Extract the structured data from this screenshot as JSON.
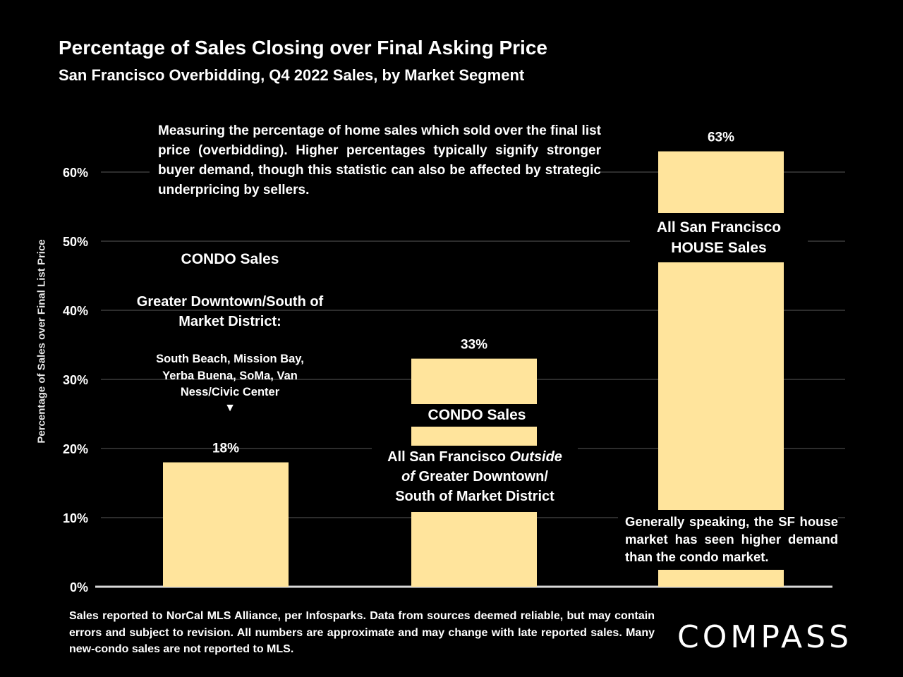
{
  "chart_data": {
    "type": "bar",
    "title": "Percentage of Sales Closing over Final Asking Price",
    "subtitle": "San Francisco Overbidding, Q4 2022 Sales, by Market Segment",
    "ylabel": "Percentage of Sales over Final List Price",
    "xlabel": "",
    "ylim": [
      0,
      70
    ],
    "yticks": [
      0,
      10,
      20,
      30,
      40,
      50,
      60
    ],
    "ytick_labels": [
      "0%",
      "10%",
      "20%",
      "30%",
      "40%",
      "50%",
      "60%"
    ],
    "grid": true,
    "categories": [
      "CONDO Sales - Greater Downtown/South of Market District",
      "CONDO Sales - All San Francisco Outside of Greater Downtown/South of Market District",
      "All San Francisco HOUSE Sales"
    ],
    "values": [
      18,
      33,
      63
    ],
    "value_labels": [
      "18%",
      "33%",
      "63%"
    ],
    "bar_color": "#FFE49C"
  },
  "annotations": {
    "description": "Measuring the percentage of home sales which sold over the final list price (overbidding). Higher percentages typically signify stronger buyer demand, though this statistic can also be affected by strategic underpricing by sellers.",
    "condo1_title": "CONDO Sales",
    "condo1_district": "Greater Downtown/South of Market District:",
    "condo1_areas": "South Beach, Mission Bay, Yerba Buena, SoMa, Van Ness/Civic Center",
    "condo1_arrow": "▼",
    "condo2_title": "CONDO Sales",
    "condo2_line1_pre": "All San Francisco ",
    "condo2_line1_em": "Outside",
    "condo2_line2_em": "of",
    "condo2_line2_post": " Greater Downtown/",
    "condo2_line3": "South of Market District",
    "house_title": "All San Francisco HOUSE Sales",
    "house_note": "Generally speaking, the SF house market has seen higher demand than the condo market."
  },
  "footer": "Sales reported to NorCal MLS Alliance, per Infosparks. Data from sources deemed reliable, but may contain errors and subject to revision. All numbers are approximate and may change with late reported sales. Many new-condo sales are not reported to MLS.",
  "logo": "COMPASS"
}
